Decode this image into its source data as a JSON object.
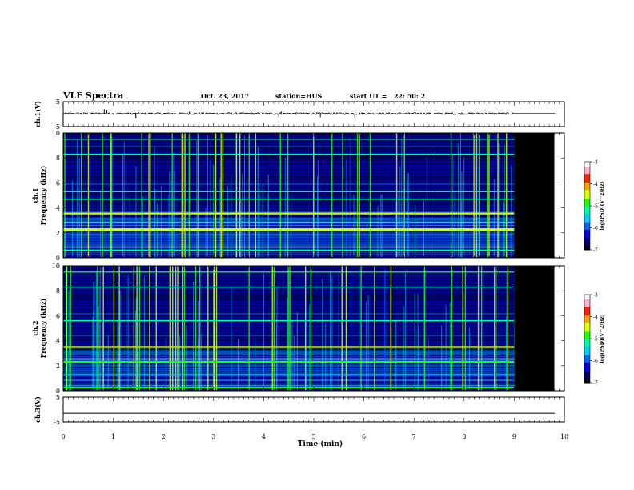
{
  "header": {
    "title": "VLF Spectra",
    "date": "Oct. 23, 2017",
    "station": "station=HUS",
    "start_ut": "start UT =   22: 50: 2"
  },
  "colors": {
    "spec_background": "#000060",
    "no_data": "#000000",
    "colorbar": [
      "#000000",
      "#00006a",
      "#0000e0",
      "#0066ff",
      "#00d0ff",
      "#00ffa0",
      "#20ff00",
      "#d8ff00",
      "#ffa000",
      "#ff2000",
      "#ffb0c0",
      "#ffffff"
    ]
  },
  "chart_data": [
    {
      "type": "line",
      "name": "ch1-voltage",
      "ylabel": "ch.1(V)",
      "ylim": [
        -5,
        5
      ],
      "yticks": [
        "5",
        "-5"
      ],
      "xlim": [
        0,
        10
      ],
      "data_end_min": 9.0,
      "baseline": 0.2,
      "noise_amplitude": 0.4,
      "spikes": [
        {
          "x": 0.82,
          "y": 2.0
        },
        {
          "x": 0.87,
          "y": 1.6
        },
        {
          "x": 1.45,
          "y": -1.8
        },
        {
          "x": 2.52,
          "y": 1.0
        },
        {
          "x": 4.3,
          "y": -1.3
        },
        {
          "x": 4.35,
          "y": 1.0
        },
        {
          "x": 5.13,
          "y": -1.3
        },
        {
          "x": 5.82,
          "y": -1.5
        },
        {
          "x": 7.82,
          "y": -1.1
        }
      ]
    },
    {
      "type": "heatmap",
      "name": "ch1-spectrogram",
      "ylabel": "ch.1\nFrequency (kHz)",
      "ylim": [
        0,
        10
      ],
      "yticks": [
        "0",
        "2",
        "4",
        "6",
        "8",
        "10"
      ],
      "xlim": [
        0,
        10
      ],
      "data_end_min": 9.0,
      "colorbar": {
        "label": "log(PSD)(V^2/Hz)",
        "range": [
          -7,
          -3
        ],
        "ticks": [
          "-3",
          "-4",
          "-5",
          "-6",
          "-7"
        ]
      },
      "lines_khz": [
        {
          "f": 2.25,
          "level": -4.3,
          "width": 0.22
        },
        {
          "f": 3.55,
          "level": -4.6,
          "width": 0.14
        },
        {
          "f": 4.7,
          "level": -5.1,
          "width": 0.1
        },
        {
          "f": 5.3,
          "level": -5.2,
          "width": 0.08
        },
        {
          "f": 8.3,
          "level": -5.3,
          "width": 0.08
        },
        {
          "f": 9.5,
          "level": -5.2,
          "width": 0.08
        },
        {
          "f": 0.6,
          "level": -5.3,
          "width": 0.1
        },
        {
          "f": 2.85,
          "level": -5.4,
          "width": 0.1
        }
      ]
    },
    {
      "type": "heatmap",
      "name": "ch2-spectrogram",
      "ylabel": "ch.2\nFrequency (kHz)",
      "ylim": [
        0,
        10
      ],
      "yticks": [
        "0",
        "2",
        "4",
        "6",
        "8",
        "10"
      ],
      "xlim": [
        0,
        10
      ],
      "data_end_min": 9.0,
      "colorbar": {
        "label": "log(PSD)(V^2/Hz)",
        "range": [
          -7,
          -3
        ],
        "ticks": [
          "-3",
          "-4",
          "-5",
          "-6",
          "-7"
        ]
      },
      "lines_khz": [
        {
          "f": 3.5,
          "level": -4.3,
          "width": 0.14
        },
        {
          "f": 2.3,
          "level": -5.0,
          "width": 0.14
        },
        {
          "f": 5.6,
          "level": -5.2,
          "width": 0.1
        },
        {
          "f": 8.3,
          "level": -5.3,
          "width": 0.08
        },
        {
          "f": 9.5,
          "level": -5.2,
          "width": 0.08
        },
        {
          "f": 0.25,
          "level": -5.0,
          "width": 0.12
        },
        {
          "f": 1.3,
          "level": -5.6,
          "width": 0.06
        }
      ]
    },
    {
      "type": "line",
      "name": "ch3-voltage",
      "ylabel": "ch.3(V)",
      "ylim": [
        -5,
        5
      ],
      "yticks": [
        "5",
        "-5"
      ],
      "xlim": [
        0,
        10
      ],
      "baseline": -1.5
    }
  ],
  "xaxis": {
    "label": "Time (min)",
    "ticks": [
      "0",
      "1",
      "2",
      "3",
      "4",
      "5",
      "6",
      "7",
      "8",
      "9",
      "10"
    ]
  }
}
